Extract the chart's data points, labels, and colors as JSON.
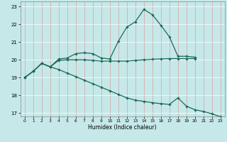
{
  "xlabel": "Humidex (Indice chaleur)",
  "bg_color": "#c6e8e8",
  "grid_color": "#aad4d4",
  "line_color": "#1a6b5a",
  "xlim": [
    -0.5,
    23.5
  ],
  "ylim": [
    16.8,
    23.3
  ],
  "yticks": [
    17,
    18,
    19,
    20,
    21,
    22,
    23
  ],
  "xticks": [
    0,
    1,
    2,
    3,
    4,
    5,
    6,
    7,
    8,
    9,
    10,
    11,
    12,
    13,
    14,
    15,
    16,
    17,
    18,
    19,
    20,
    21,
    22,
    23
  ],
  "curve1_x": [
    0,
    1,
    2,
    3,
    4,
    5,
    6,
    7,
    8,
    9,
    10,
    11,
    12,
    13,
    14,
    15,
    16,
    17,
    18,
    19,
    20
  ],
  "curve1_y": [
    19.0,
    19.35,
    19.8,
    19.6,
    20.05,
    20.1,
    20.35,
    20.4,
    20.35,
    20.1,
    20.05,
    21.05,
    21.85,
    22.15,
    22.85,
    22.55,
    21.95,
    21.3,
    20.2,
    20.2,
    20.15
  ],
  "curve2_x": [
    0,
    1,
    2,
    3,
    4,
    5,
    6,
    7,
    8,
    9,
    10,
    11,
    12,
    13,
    14,
    15,
    16,
    17,
    18,
    19,
    20
  ],
  "curve2_y": [
    19.0,
    19.35,
    19.8,
    19.6,
    19.97,
    20.0,
    20.0,
    20.0,
    19.97,
    19.93,
    19.93,
    19.93,
    19.93,
    19.97,
    20.0,
    20.03,
    20.05,
    20.07,
    20.07,
    20.07,
    20.07
  ],
  "curve3_x": [
    0,
    1,
    2,
    3,
    4,
    5,
    6,
    7,
    8,
    9,
    10,
    11,
    12,
    13,
    14,
    15,
    16,
    17,
    18,
    19,
    20,
    21,
    22,
    23
  ],
  "curve3_y": [
    19.0,
    19.35,
    19.8,
    19.6,
    19.45,
    19.25,
    19.05,
    18.85,
    18.65,
    18.45,
    18.25,
    18.05,
    17.85,
    17.72,
    17.65,
    17.58,
    17.52,
    17.48,
    17.85,
    17.38,
    17.18,
    17.08,
    16.95,
    16.78
  ]
}
